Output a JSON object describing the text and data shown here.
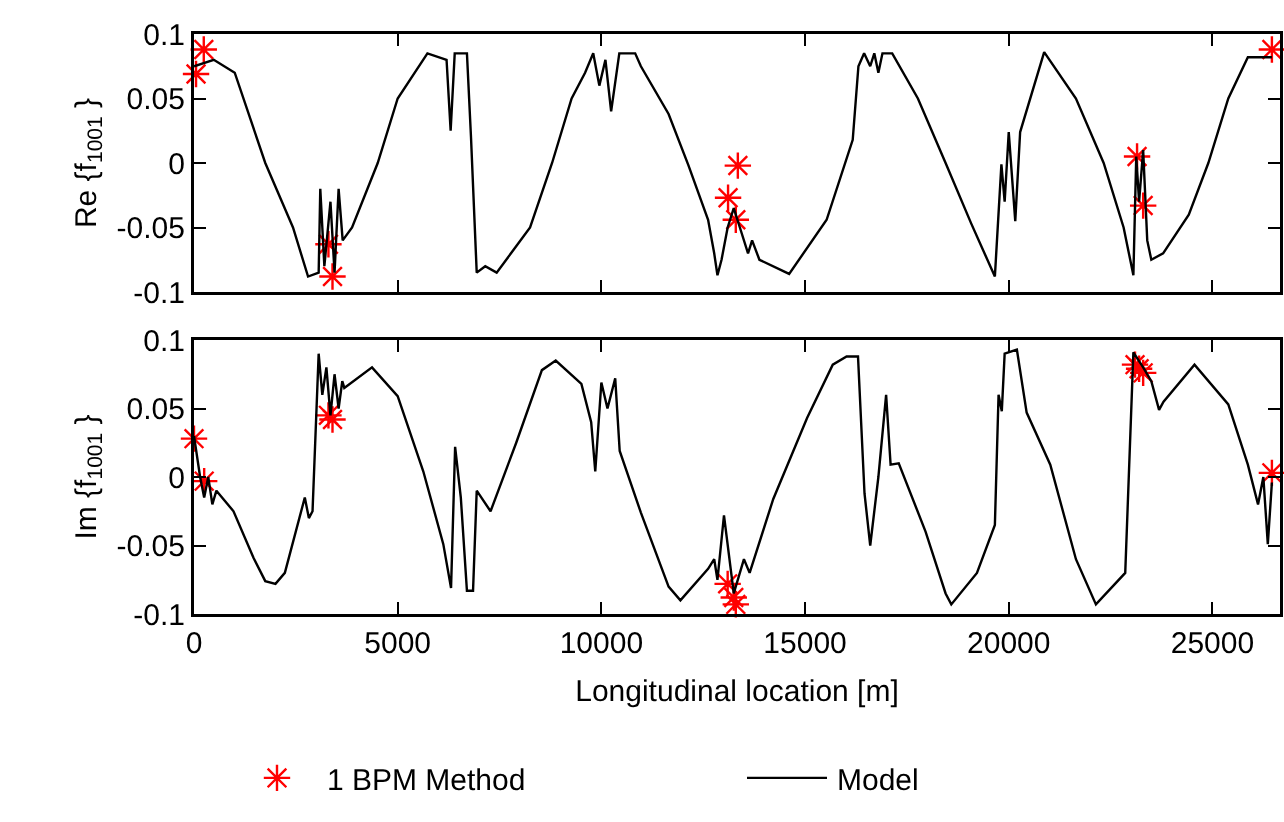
{
  "chart_data": [
    {
      "type": "line",
      "ylabel": "Re {f$_{1001}$ }",
      "xlim": [
        0,
        26659
      ],
      "xticks": [
        0,
        5000,
        10000,
        15000,
        20000,
        25000
      ],
      "ylim": [
        -0.1,
        0.1
      ],
      "yticks": [
        -0.1,
        -0.05,
        0,
        0.05,
        0.1
      ],
      "grid": false,
      "legend": false,
      "tick_labels": "y",
      "series": [
        {
          "type": "scatter",
          "marker": "cross",
          "color": "#ff0000",
          "x": [
            50,
            240,
            3300,
            3400,
            13110,
            13300,
            13350,
            23150,
            23300,
            26460
          ],
          "values": [
            0.069,
            0.088,
            -0.063,
            -0.088,
            -0.027,
            -0.044,
            -0.002,
            0.005,
            -0.033,
            0.088
          ]
        },
        {
          "type": "line",
          "marker": "none",
          "line_style": "solid",
          "color": "#000000",
          "x": [
            0,
            485,
            1000,
            1750,
            2430,
            2800,
            3060,
            3100,
            3200,
            3350,
            3450,
            3550,
            3650,
            3880,
            4510,
            5000,
            5730,
            6200,
            6300,
            6400,
            6700,
            6800,
            6940,
            7150,
            7430,
            8250,
            8790,
            9270,
            9600,
            9800,
            9950,
            10100,
            10240,
            10440,
            10830,
            10970,
            11650,
            12140,
            12620,
            12770,
            12850,
            12950,
            13100,
            13250,
            13400,
            13600,
            13700,
            13880,
            14610,
            15530,
            16170,
            16310,
            16450,
            16600,
            16700,
            16800,
            16900,
            17140,
            17770,
            18450,
            19080,
            19660,
            19820,
            19900,
            20000,
            20160,
            20280,
            20870,
            21650,
            22330,
            22820,
            23060,
            23130,
            23200,
            23300,
            23400,
            23500,
            23790,
            24420,
            24900,
            25390,
            25870,
            26460
          ],
          "values": [
            0.075,
            0.08,
            0.07,
            0,
            -0.05,
            -0.088,
            -0.085,
            -0.02,
            -0.08,
            -0.03,
            -0.085,
            -0.02,
            -0.06,
            -0.05,
            0,
            0.05,
            0.085,
            0.08,
            0.025,
            0.085,
            0.085,
            0.02,
            -0.085,
            -0.08,
            -0.085,
            -0.05,
            0,
            0.05,
            0.07,
            0.085,
            0.06,
            0.08,
            0.04,
            0.085,
            0.085,
            0.075,
            0.038,
            -0.002,
            -0.044,
            -0.07,
            -0.087,
            -0.075,
            -0.05,
            -0.035,
            -0.05,
            -0.07,
            -0.06,
            -0.075,
            -0.086,
            -0.044,
            0.018,
            0.075,
            0.085,
            0.075,
            0.085,
            0.07,
            0.085,
            0.085,
            0.05,
            0,
            -0.047,
            -0.088,
            -0.001,
            -0.03,
            0.024,
            -0.045,
            0.024,
            0.086,
            0.05,
            0,
            -0.05,
            -0.087,
            0.005,
            -0.03,
            0.01,
            -0.06,
            -0.075,
            -0.07,
            -0.04,
            0,
            0.05,
            0.082,
            0.082
          ]
        }
      ]
    },
    {
      "type": "line",
      "ylabel": "Im {f$_{1001}$ }",
      "xlabel": "Longitudinal location [m]",
      "xlim": [
        0,
        26659
      ],
      "xticks": [
        0,
        5000,
        10000,
        15000,
        20000,
        25000
      ],
      "ylim": [
        -0.1,
        0.1
      ],
      "yticks": [
        -0.1,
        -0.05,
        0,
        0.05,
        0.1
      ],
      "grid": false,
      "legend": "bottom",
      "series": [
        {
          "type": "scatter",
          "name": "1 BPM Method",
          "marker": "cross",
          "color": "#ff0000",
          "x": [
            0,
            250,
            3300,
            3400,
            13100,
            13250,
            13300,
            23100,
            23200,
            23300,
            26460
          ],
          "values": [
            0.028,
            -0.003,
            0.045,
            0.042,
            -0.078,
            -0.088,
            -0.093,
            0.082,
            0.079,
            0.076,
            0.003
          ]
        },
        {
          "type": "line",
          "name": "Model",
          "marker": "none",
          "line_style": "solid",
          "color": "#000000",
          "x": [
            0,
            150,
            250,
            350,
            450,
            550,
            970,
            1460,
            1750,
            2000,
            2230,
            2720,
            2820,
            2910,
            3060,
            3150,
            3250,
            3350,
            3450,
            3550,
            3640,
            3690,
            4370,
            5000,
            5630,
            6120,
            6310,
            6410,
            6550,
            6700,
            6850,
            6940,
            7280,
            7910,
            8540,
            8880,
            9510,
            9750,
            9850,
            10000,
            10150,
            10340,
            10450,
            10970,
            11650,
            11940,
            12620,
            12770,
            12850,
            13010,
            13250,
            13500,
            13640,
            14220,
            15050,
            15680,
            16020,
            16300,
            16460,
            16600,
            16800,
            16990,
            17100,
            17300,
            17960,
            18450,
            18590,
            19220,
            19660,
            19750,
            19830,
            19900,
            20200,
            20440,
            21020,
            21650,
            22140,
            22860,
            23060,
            23300,
            23500,
            23690,
            23800,
            24560,
            25390,
            25870,
            26120,
            26250,
            26360,
            26460
          ],
          "values": [
            0.03,
            0,
            -0.015,
            0,
            -0.02,
            -0.01,
            -0.025,
            -0.059,
            -0.076,
            -0.078,
            -0.07,
            -0.015,
            -0.03,
            -0.025,
            0.09,
            0.06,
            0.08,
            0.045,
            0.075,
            0.05,
            0.07,
            0.065,
            0.08,
            0.059,
            0.004,
            -0.049,
            -0.081,
            0.022,
            -0.015,
            -0.083,
            -0.083,
            -0.01,
            -0.025,
            0.025,
            0.078,
            0.085,
            0.068,
            0.04,
            0.004,
            0.069,
            0.05,
            0.072,
            0.019,
            -0.026,
            -0.08,
            -0.09,
            -0.067,
            -0.06,
            -0.075,
            -0.028,
            -0.085,
            -0.06,
            -0.07,
            -0.016,
            0.043,
            0.082,
            0.088,
            0.088,
            -0.012,
            -0.05,
            0,
            0.06,
            0.009,
            0.01,
            -0.04,
            -0.085,
            -0.093,
            -0.07,
            -0.035,
            0.06,
            0.048,
            0.09,
            0.093,
            0.047,
            0.009,
            -0.06,
            -0.093,
            -0.07,
            0.091,
            0.08,
            0.07,
            0.049,
            0.055,
            0.082,
            0.053,
            0.009,
            -0.02,
            0,
            -0.049,
            -0.004
          ]
        }
      ]
    }
  ]
}
